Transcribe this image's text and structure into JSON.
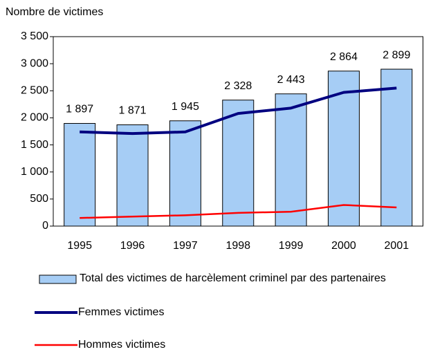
{
  "chart_data": {
    "type": "bar_line",
    "y_axis_label": "Nombre de victimes",
    "categories": [
      "1995",
      "1996",
      "1997",
      "1998",
      "1999",
      "2000",
      "2001"
    ],
    "ylim": [
      0,
      3500
    ],
    "yticks": [
      0,
      500,
      {
        "value": 1000,
        "label": "1 000"
      },
      {
        "value": 1500,
        "label": "1 500"
      },
      {
        "value": 2000,
        "label": "2 000"
      },
      {
        "value": 2500,
        "label": "2 500"
      },
      {
        "value": 3000,
        "label": "3 000"
      },
      {
        "value": 3500,
        "label": "3 500"
      }
    ],
    "series": [
      {
        "name": "Total des victimes de harcèlement criminel par des partenaires",
        "type": "bar",
        "color": "#a6cdf5",
        "values": [
          1897,
          1871,
          1945,
          2328,
          2443,
          2864,
          2899
        ],
        "value_labels": [
          "1 897",
          "1 871",
          "1 945",
          "2 328",
          "2 443",
          "2 864",
          "2 899"
        ]
      },
      {
        "name": "Femmes victimes",
        "type": "line",
        "color": "#000080",
        "values": [
          1740,
          1710,
          1740,
          2080,
          2180,
          2470,
          2550
        ]
      },
      {
        "name": "Hommes victimes",
        "type": "line",
        "color": "#ff0000",
        "values": [
          150,
          175,
          200,
          245,
          265,
          390,
          345
        ]
      }
    ]
  }
}
